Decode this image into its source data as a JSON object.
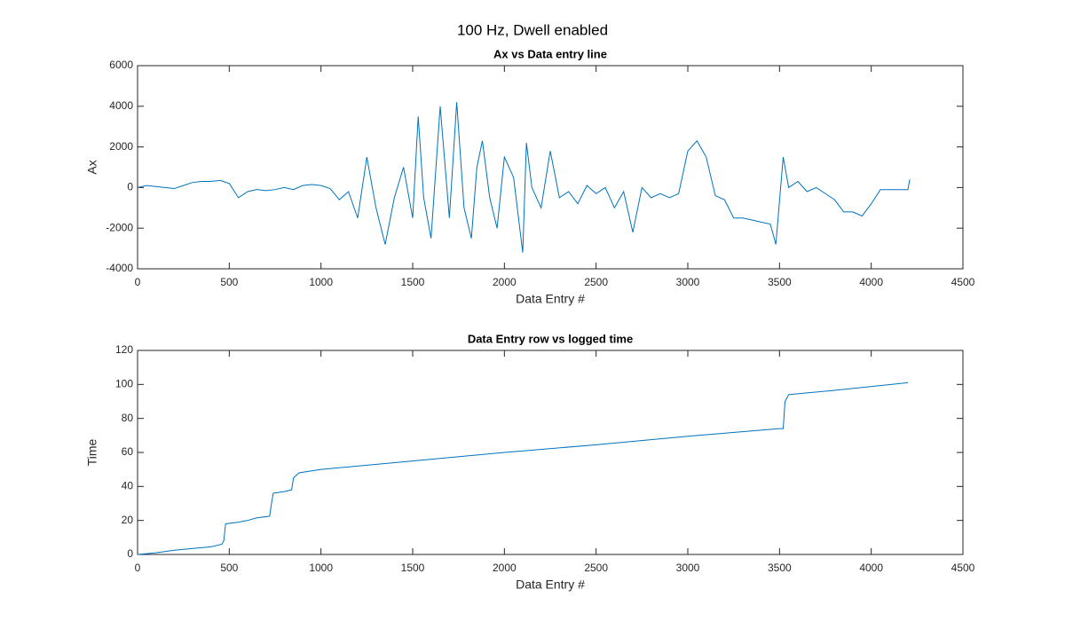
{
  "title": "100 Hz, Dwell enabled",
  "chart_data": [
    {
      "type": "line",
      "title": "Ax vs Data entry line",
      "xlabel": "Data Entry #",
      "ylabel": "Ax",
      "x": [
        0,
        50,
        100,
        150,
        200,
        250,
        300,
        350,
        400,
        450,
        500,
        550,
        600,
        650,
        700,
        750,
        800,
        850,
        900,
        950,
        1000,
        1050,
        1100,
        1150,
        1200,
        1250,
        1300,
        1350,
        1400,
        1450,
        1500,
        1530,
        1560,
        1600,
        1650,
        1700,
        1740,
        1780,
        1820,
        1850,
        1880,
        1920,
        1960,
        2000,
        2050,
        2100,
        2120,
        2150,
        2200,
        2250,
        2300,
        2350,
        2400,
        2450,
        2500,
        2550,
        2600,
        2650,
        2700,
        2750,
        2800,
        2850,
        2900,
        2950,
        3000,
        3050,
        3100,
        3150,
        3200,
        3250,
        3300,
        3350,
        3400,
        3450,
        3480,
        3520,
        3550,
        3600,
        3650,
        3700,
        3750,
        3800,
        3850,
        3900,
        3950,
        4000,
        4050,
        4100,
        4150,
        4200,
        4210
      ],
      "series": [
        {
          "color": "#0072bd",
          "values": [
            0,
            100,
            50,
            0,
            -50,
            100,
            250,
            300,
            300,
            350,
            200,
            -500,
            -200,
            -100,
            -150,
            -100,
            0,
            -100,
            100,
            150,
            100,
            -50,
            -600,
            -200,
            -1500,
            1500,
            -1000,
            -2800,
            -500,
            1000,
            -1500,
            3500,
            -500,
            -2500,
            4000,
            -1500,
            4200,
            -1000,
            -2500,
            1000,
            2300,
            -500,
            -2000,
            1500,
            500,
            -3200,
            2200,
            0,
            -1000,
            1800,
            -500,
            -200,
            -800,
            100,
            -300,
            0,
            -1000,
            -200,
            -2200,
            0,
            -500,
            -300,
            -500,
            -300,
            1800,
            2300,
            1500,
            -400,
            -600,
            -1500,
            -1500,
            -1600,
            -1700,
            -1800,
            -2800,
            1500,
            0,
            300,
            -200,
            0,
            -300,
            -600,
            -1200,
            -1200,
            -1400,
            -800,
            -100,
            -100,
            -100,
            -100,
            400
          ]
        }
      ],
      "xlim": [
        0,
        4500
      ],
      "ylim": [
        -4000,
        6000
      ],
      "xticks": [
        0,
        500,
        1000,
        1500,
        2000,
        2500,
        3000,
        3500,
        4000,
        4500
      ],
      "yticks": [
        -4000,
        -2000,
        0,
        2000,
        4000,
        6000
      ]
    },
    {
      "type": "line",
      "title": "Data Entry row vs logged time",
      "xlabel": "Data Entry #",
      "ylabel": "Time",
      "x": [
        0,
        100,
        200,
        300,
        400,
        460,
        470,
        480,
        550,
        600,
        650,
        720,
        730,
        740,
        800,
        840,
        850,
        880,
        1000,
        1500,
        2000,
        2500,
        3000,
        3500,
        3520,
        3530,
        3550,
        3800,
        4200
      ],
      "series": [
        {
          "color": "#0072bd",
          "values": [
            0,
            1,
            2.5,
            3.5,
            4.5,
            6,
            8,
            18,
            19,
            20,
            21.5,
            22.5,
            30,
            36,
            37,
            38,
            45,
            48,
            50,
            55,
            60,
            64.5,
            69.5,
            74,
            74,
            90,
            94,
            96.5,
            101
          ]
        }
      ],
      "xlim": [
        0,
        4500
      ],
      "ylim": [
        0,
        120
      ],
      "xticks": [
        0,
        500,
        1000,
        1500,
        2000,
        2500,
        3000,
        3500,
        4000,
        4500
      ],
      "yticks": [
        0,
        20,
        40,
        60,
        80,
        100,
        120
      ]
    }
  ]
}
